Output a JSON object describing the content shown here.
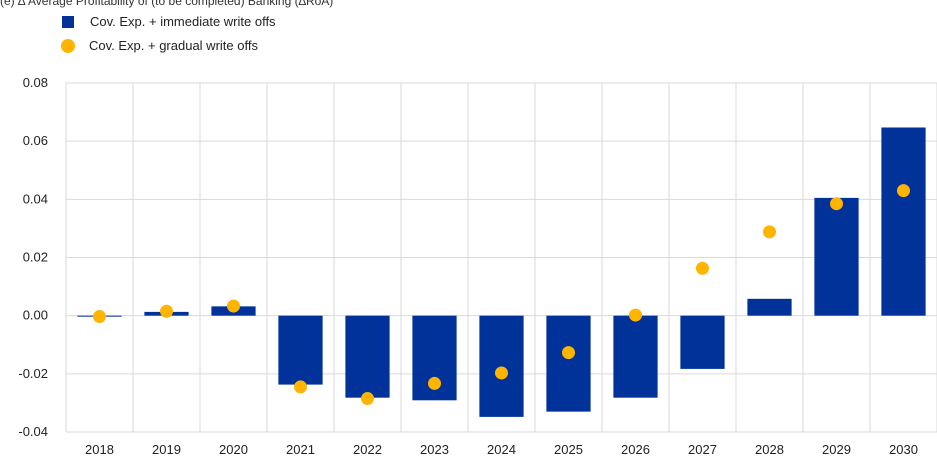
{
  "top_line": "(e) ∆ Average Profitability of (to be completed) Banking (∆RoA)",
  "chart_data": {
    "type": "bar",
    "categories": [
      "2018",
      "2019",
      "2020",
      "2021",
      "2022",
      "2023",
      "2024",
      "2025",
      "2026",
      "2027",
      "2028",
      "2029",
      "2030"
    ],
    "series": [
      {
        "name": "Cov. Exp. + immediate write offs",
        "render": "bar",
        "color": "#003299",
        "values": [
          -0.0003,
          0.0013,
          0.0032,
          -0.0237,
          -0.0282,
          -0.0291,
          -0.0348,
          -0.033,
          -0.0282,
          -0.0183,
          0.0058,
          0.0405,
          0.0647
        ]
      },
      {
        "name": "Cov. Exp. + gradual write offs",
        "render": "dot",
        "color": "#FFB400",
        "values": [
          -0.0003,
          0.0015,
          0.0033,
          -0.0245,
          -0.0285,
          -0.0233,
          -0.0197,
          -0.0127,
          0.0002,
          0.0163,
          0.0288,
          0.0385,
          0.043
        ]
      }
    ],
    "ylim": [
      -0.04,
      0.08
    ],
    "yticks": [
      "-0.04",
      "-0.02",
      "0.00",
      "0.02",
      "0.04",
      "0.06",
      "0.08"
    ],
    "grid": true,
    "legend_position": "top-left"
  }
}
